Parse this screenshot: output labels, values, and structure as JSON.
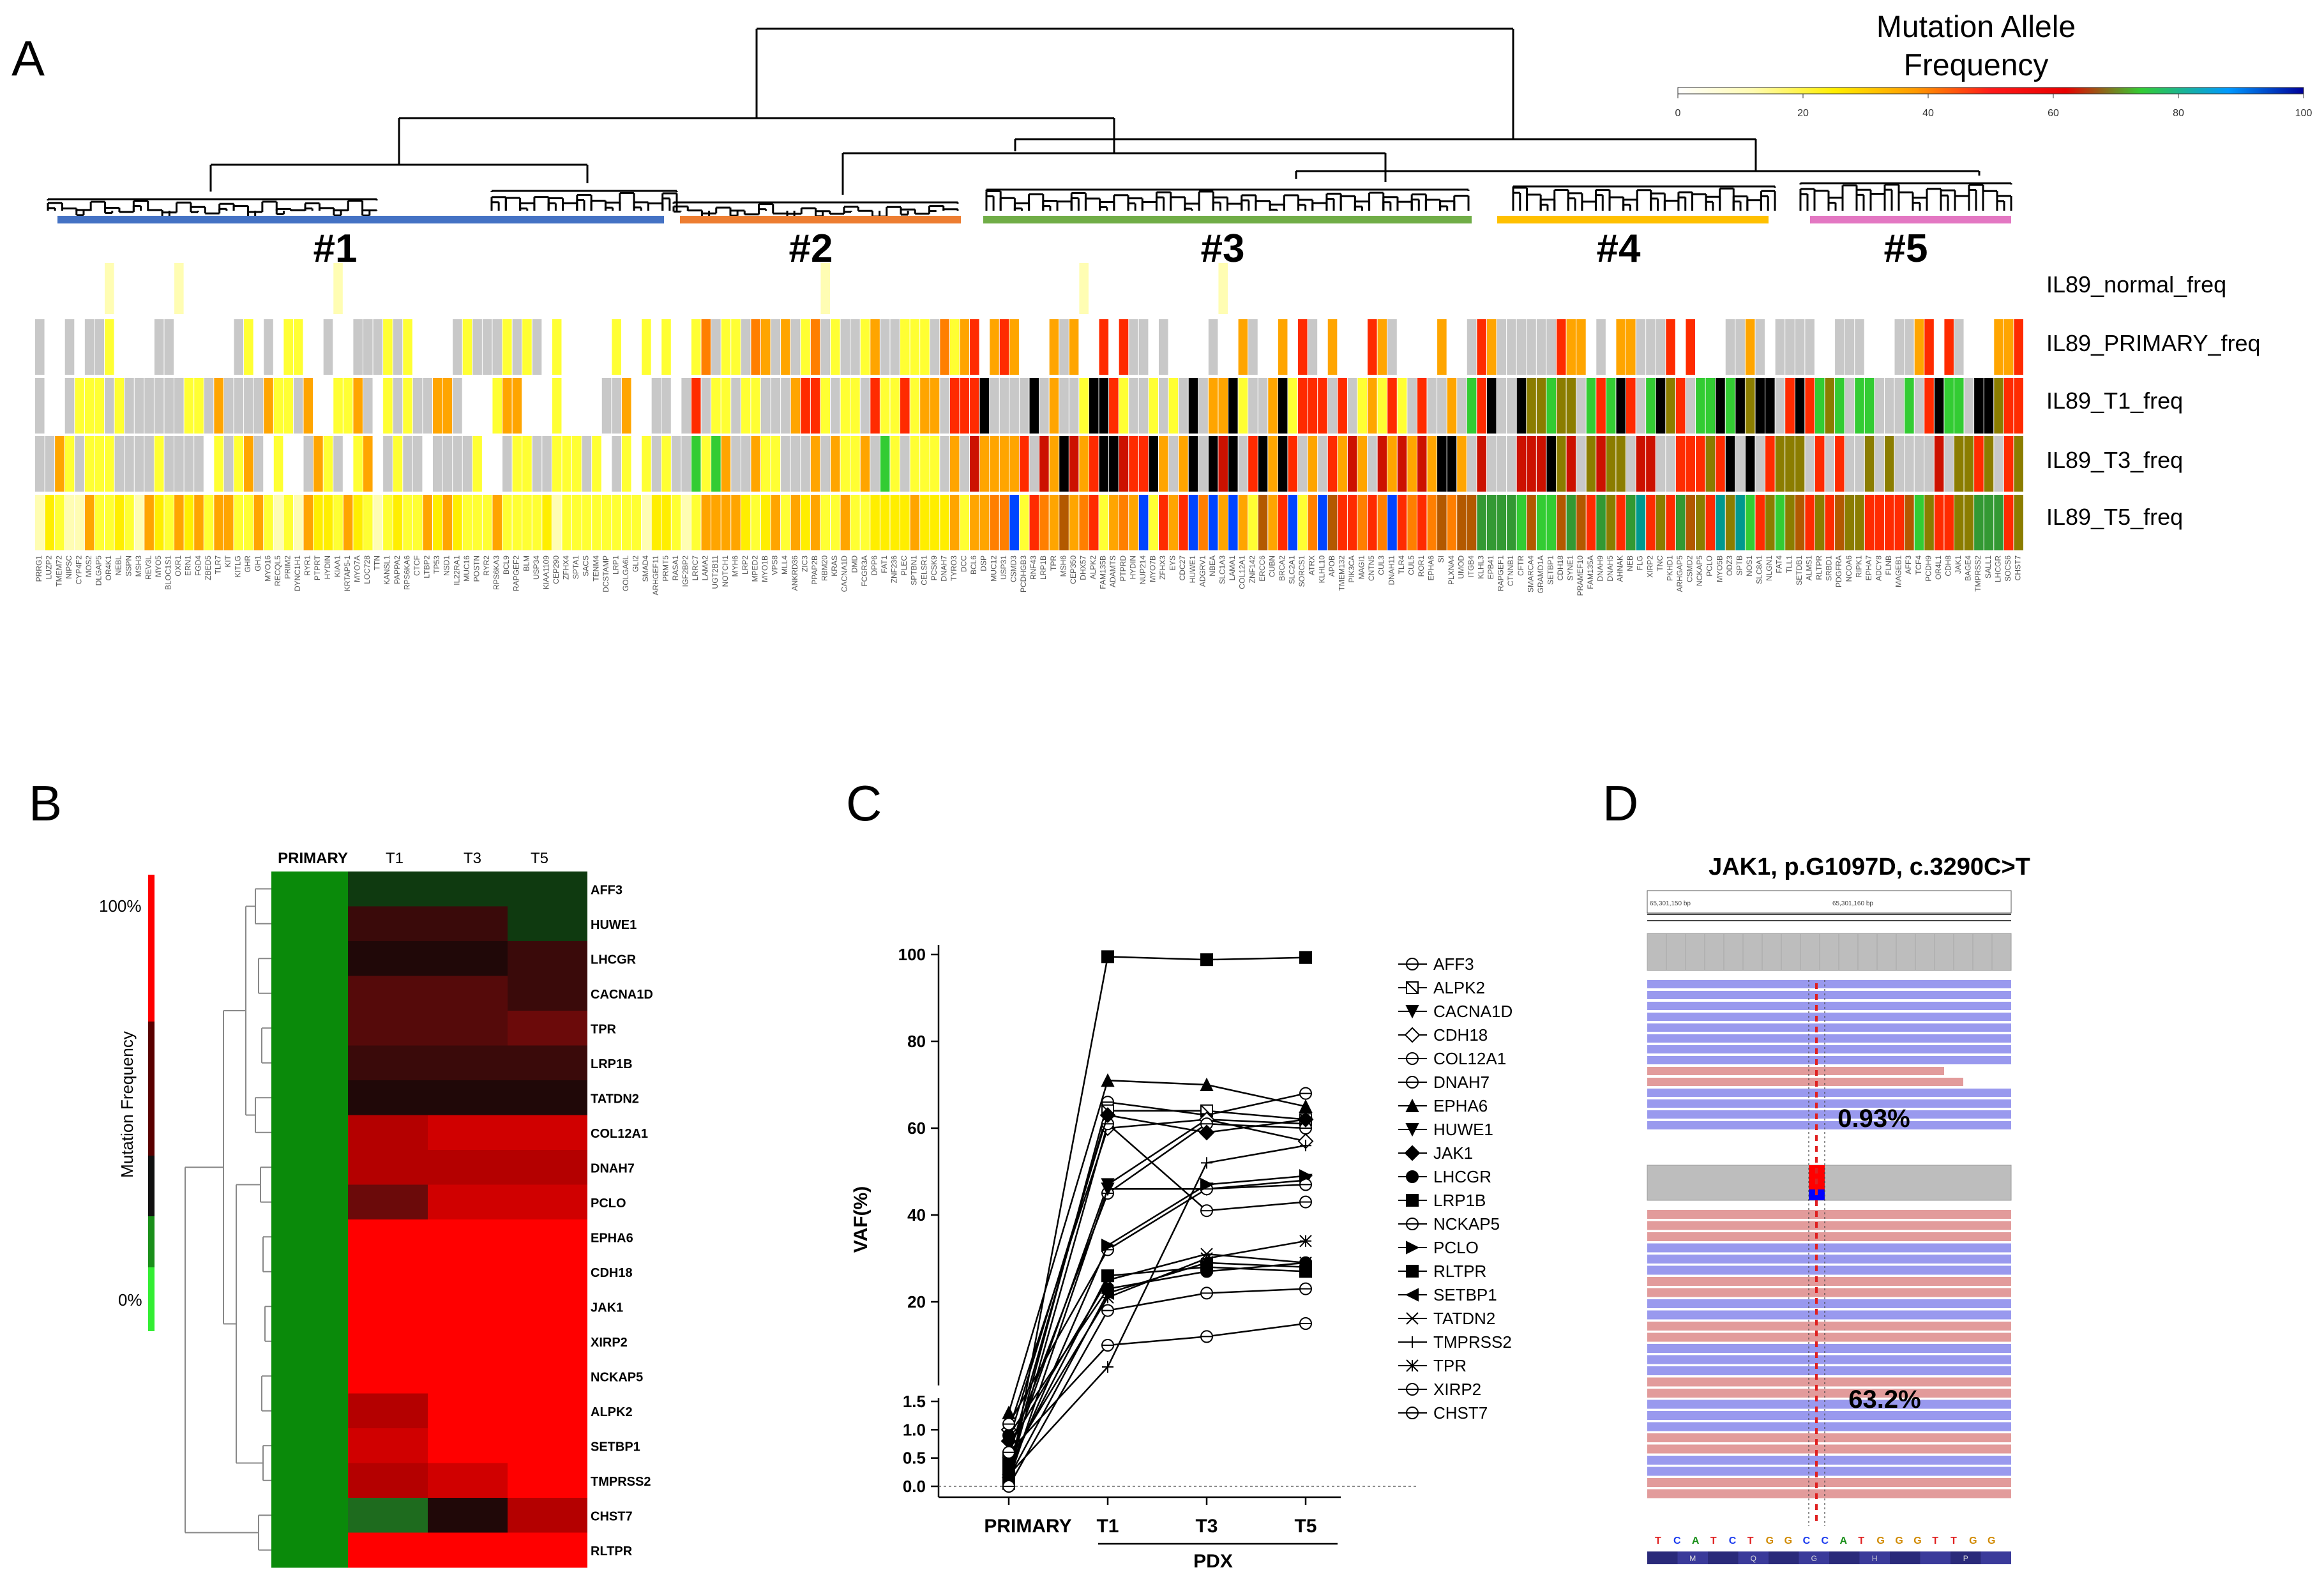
{
  "panels": {
    "A": {
      "letter": "A",
      "legend": {
        "title_line1": "Mutation Allele",
        "title_line2": "Frequency",
        "ticks": [
          "0",
          "20",
          "40",
          "60",
          "80",
          "100"
        ]
      },
      "clusters": [
        "#1",
        "#2",
        "#3",
        "#4",
        "#5"
      ],
      "cluster_colors": [
        "#4472c4",
        "#ed7d31",
        "#70ad47",
        "#ffc000",
        "#e377c2"
      ],
      "row_labels": [
        "IL89_normal_freq",
        "IL89_PRIMARY_freq",
        "IL89_T1_freq",
        "IL89_T3_freq",
        "IL89_T5_freq"
      ],
      "genes": [
        "PRRG1",
        "LUZP2",
        "TMEM72",
        "NIPSC",
        "CYP4F2",
        "MOS2",
        "DLGAP5",
        "OR4K1",
        "NEBL",
        "SSPN",
        "MSH3",
        "REV3L",
        "MYO5",
        "BLOC1S1",
        "OXR1",
        "ERN1",
        "FGD4",
        "ZBED5",
        "TLR7",
        "KIT",
        "KITLG",
        "GHR",
        "GH1",
        "MYO16",
        "RECQL5",
        "PRIM2",
        "DYNC1H1",
        "RYR1",
        "PTPRT",
        "HYDIN",
        "KIAA1",
        "KRTAP5-1",
        "MYO7A",
        "LOC728",
        "TTN",
        "KANSL1",
        "PAPPA2",
        "RPS6KA6",
        "CTCF",
        "LTBP2",
        "TP53",
        "NSD1",
        "IL22RA1",
        "MUC16",
        "POSTN",
        "RYR2",
        "RPS6KA3",
        "BCL9",
        "RAPGEF2",
        "BLM",
        "USP34",
        "KIAA1109",
        "CEP290",
        "ZFHX4",
        "SPTA1",
        "SACS",
        "TENM4",
        "DCSTAMP",
        "LRP1",
        "GOLGA6L",
        "GLI2",
        "SMAD4",
        "ARHGEF11",
        "PRMT5",
        "RASA1",
        "IGF2BP2",
        "LRRC7",
        "LAMA2",
        "UGT2B11",
        "NOTCH1",
        "MYH6",
        "LRP2",
        "MPED2",
        "MYO1B",
        "VPS8",
        "MLL4",
        "ANKRD36",
        "ZIC3",
        "PPAP2B",
        "RBM20",
        "KRAS",
        "CACNA1D",
        "DMD",
        "FCGR3A",
        "DPP6",
        "FAT1",
        "ZNF236",
        "PLEC",
        "SPTBN1",
        "CELSR1",
        "PCSK9",
        "DNAH7",
        "TYRO3",
        "DCC",
        "BCL6",
        "DSP",
        "MUC12",
        "USP31",
        "CSMD3",
        "PCDHGB3",
        "RNF43",
        "LRP1B",
        "TPR",
        "MSH6",
        "CEP350",
        "DHX57",
        "ALPK2",
        "FAM135B",
        "ADAMTS",
        "PTPRD",
        "HYDIN",
        "NUP214",
        "MYO7B",
        "ZFHX3",
        "EYS",
        "CDC27",
        "HUWE1",
        "ADGRV1",
        "NBEA",
        "SLC1A3",
        "LAMA1",
        "COL12A1",
        "ZNF142",
        "ERCC6",
        "CUBN",
        "BRCA2",
        "SLC2A1",
        "SORCS1",
        "ATRX",
        "KLHL10",
        "APOB",
        "TMEM132",
        "PIK3CA",
        "MAGI1",
        "CNTN5",
        "CUL3",
        "DNAH11",
        "TLR4",
        "CUL5",
        "ROR1",
        "EPHA6",
        "SI",
        "PLXNA4",
        "UMOD",
        "ITGB4",
        "KLHL3",
        "EPB41",
        "RAPGEF1",
        "CTNNB1",
        "CFTR",
        "SMARCA4",
        "GRAMD1A",
        "SETBP1",
        "CDH18",
        "SYNE1",
        "PRAMEF10",
        "FAM135A",
        "DNAH9",
        "DNAH5",
        "AHNAK",
        "NEB",
        "FLG",
        "XIRP2",
        "TNC",
        "PKHD1",
        "ARHGAP5",
        "CSMD2",
        "NCKAP5",
        "PCLO",
        "MYO5B",
        "ODZ3",
        "SPTB",
        "NOS1",
        "SLC8A1",
        "NLGN1",
        "FAT4",
        "TLL1",
        "SETDB1",
        "ALMS1",
        "RLTPR",
        "SRBD1",
        "PDGFRA",
        "NCOA6",
        "RIPK1",
        "EPHA7",
        "ADCY8",
        "FLNB",
        "MAGEB1",
        "AFF3",
        "TCF4",
        "PCDH9",
        "OR4L1",
        "CDH8",
        "JAK1",
        "BAGE4",
        "TMPRSS2",
        "SALL1",
        "LHCGR",
        "SOCS6",
        "CHST7"
      ],
      "gene_color_codes": [
        "1111111111111111111111111111111111111111111111111111111111111111111111111111111111111111111111111111111111111111111111111111111111111111111111111111111111111111111111111111111111111111111111111111111111111111111111111111111111111111"
      ]
    },
    "B": {
      "letter": "B",
      "columns": [
        "PRIMARY",
        "T1",
        "T3",
        "T5"
      ],
      "scale_label": "Mutation Frequency",
      "scale_top": "100%",
      "scale_bottom": "0%"
    },
    "C": {
      "letter": "C",
      "ylabel": "VAF(%)",
      "xgroup_label": "PDX",
      "xticks": [
        "PRIMARY",
        "T1",
        "T3",
        "T5"
      ],
      "upper_yticks": [
        "20",
        "40",
        "60",
        "80",
        "100"
      ],
      "lower_yticks": [
        "0.0",
        "0.5",
        "1.0",
        "1.5"
      ]
    },
    "D": {
      "letter": "D",
      "title": "JAK1, p.G1097D, c.3290C>T",
      "coord_left": "65,301,150 bp",
      "coord_right": "65,301,160 bp",
      "pct_top": "0.93%",
      "pct_bottom": "63.2%",
      "sequence": [
        "T",
        "C",
        "A",
        "T",
        "C",
        "T",
        "G",
        "G",
        "C",
        "C",
        "A",
        "T",
        "G",
        "G",
        "G",
        "T",
        "T",
        "G",
        "G"
      ],
      "amino_acids": [
        "",
        "M",
        "",
        "Q",
        "",
        "G",
        "",
        "H",
        "",
        "",
        "P",
        ""
      ]
    }
  },
  "chart_data": [
    {
      "type": "heatmap",
      "panel": "A",
      "rows": [
        "IL89_normal_freq",
        "IL89_PRIMARY_freq",
        "IL89_T1_freq",
        "IL89_T3_freq",
        "IL89_T5_freq"
      ],
      "clusters": [
        {
          "name": "#1",
          "color": "#4472c4"
        },
        {
          "name": "#2",
          "color": "#ed7d31"
        },
        {
          "name": "#3",
          "color": "#70ad47"
        },
        {
          "name": "#4",
          "color": "#ffc000"
        },
        {
          "name": "#5",
          "color": "#e377c2"
        }
      ],
      "legend_title": "Mutation Allele Frequency",
      "legend_range": [
        0,
        100
      ]
    },
    {
      "type": "heatmap",
      "panel": "B",
      "rows": [
        "AFF3",
        "HUWE1",
        "LHCGR",
        "CACNA1D",
        "TPR",
        "LRP1B",
        "TATDN2",
        "COL12A1",
        "DNAH7",
        "PCLO",
        "EPHA6",
        "CDH18",
        "JAK1",
        "XIRP2",
        "NCKAP5",
        "ALPK2",
        "SETBP1",
        "TMPRSS2",
        "CHST7",
        "RLTPR"
      ],
      "columns": [
        "PRIMARY",
        "T1",
        "T3",
        "T5"
      ],
      "values": [
        [
          0,
          8,
          6,
          4
        ],
        [
          0,
          48,
          45,
          5
        ],
        [
          0,
          30,
          38,
          46
        ],
        [
          0,
          55,
          50,
          48
        ],
        [
          0,
          55,
          50,
          62
        ],
        [
          0,
          42,
          48,
          47
        ],
        [
          0,
          35,
          30,
          28
        ],
        [
          0,
          80,
          88,
          90
        ],
        [
          0,
          82,
          75,
          80
        ],
        [
          0,
          62,
          86,
          90
        ],
        [
          0,
          100,
          100,
          100
        ],
        [
          0,
          100,
          100,
          96
        ],
        [
          0,
          100,
          100,
          100
        ],
        [
          0,
          100,
          100,
          100
        ],
        [
          0,
          100,
          100,
          100
        ],
        [
          0,
          82,
          100,
          100
        ],
        [
          0,
          86,
          100,
          100
        ],
        [
          0,
          80,
          90,
          100
        ],
        [
          0,
          12,
          35,
          70
        ],
        [
          0,
          100,
          100,
          100
        ]
      ],
      "scale": [
        "0%",
        "100%"
      ]
    },
    {
      "type": "line",
      "panel": "C",
      "x": [
        "PRIMARY",
        "T1",
        "T3",
        "T5"
      ],
      "ylabel": "VAF(%)",
      "ylim_lower": [
        0,
        1.5
      ],
      "ylim_upper": [
        0,
        100
      ],
      "series": [
        {
          "name": "AFF3",
          "marker": "circle-bar",
          "values": [
            0.3,
            66,
            63,
            68
          ]
        },
        {
          "name": "ALPK2",
          "marker": "square-x",
          "values": [
            0.5,
            64,
            64,
            62
          ]
        },
        {
          "name": "CACNA1D",
          "marker": "tri-down",
          "values": [
            0.4,
            47,
            62,
            61
          ]
        },
        {
          "name": "CDH18",
          "marker": "diamond-open",
          "values": [
            1.0,
            60,
            62,
            57
          ]
        },
        {
          "name": "COL12A1",
          "marker": "circle-plus",
          "values": [
            0.6,
            45,
            61,
            60
          ]
        },
        {
          "name": "DNAH7",
          "marker": "circle-open",
          "values": [
            0.2,
            61,
            41,
            43
          ]
        },
        {
          "name": "EPHA6",
          "marker": "tri-up",
          "values": [
            1.3,
            71,
            70,
            65
          ]
        },
        {
          "name": "HUWE1",
          "marker": "tri-down",
          "values": [
            0.1,
            46,
            46,
            48
          ]
        },
        {
          "name": "JAK1",
          "marker": "diamond",
          "values": [
            0.8,
            63,
            59,
            62
          ]
        },
        {
          "name": "LHCGR",
          "marker": "circle",
          "values": [
            0.9,
            23,
            27,
            29
          ]
        },
        {
          "name": "LRP1B",
          "marker": "square",
          "values": [
            0.35,
            26,
            28,
            27
          ]
        },
        {
          "name": "NCKAP5",
          "marker": "circle-open",
          "values": [
            1.1,
            32,
            46,
            47
          ]
        },
        {
          "name": "PCLO",
          "marker": "tri-right",
          "values": [
            0.25,
            33,
            47,
            49
          ]
        },
        {
          "name": "RLTPR",
          "marker": "square",
          "values": [
            0.05,
            99.5,
            98.8,
            99.3
          ]
        },
        {
          "name": "SETBP1",
          "marker": "tri-left",
          "values": [
            0.15,
            22,
            29,
            28
          ]
        },
        {
          "name": "TATDN2",
          "marker": "x",
          "values": [
            0.7,
            25,
            31,
            29
          ]
        },
        {
          "name": "TMPRSS2",
          "marker": "plus",
          "values": [
            0.2,
            5,
            52,
            56
          ]
        },
        {
          "name": "TPR",
          "marker": "star",
          "values": [
            0.45,
            21,
            30,
            34
          ]
        },
        {
          "name": "XIRP2",
          "marker": "circle-half",
          "values": [
            0.6,
            10,
            12,
            15
          ]
        },
        {
          "name": "CHST7",
          "marker": "hex-plus",
          "values": [
            0.0,
            18,
            22,
            23
          ]
        }
      ]
    }
  ]
}
